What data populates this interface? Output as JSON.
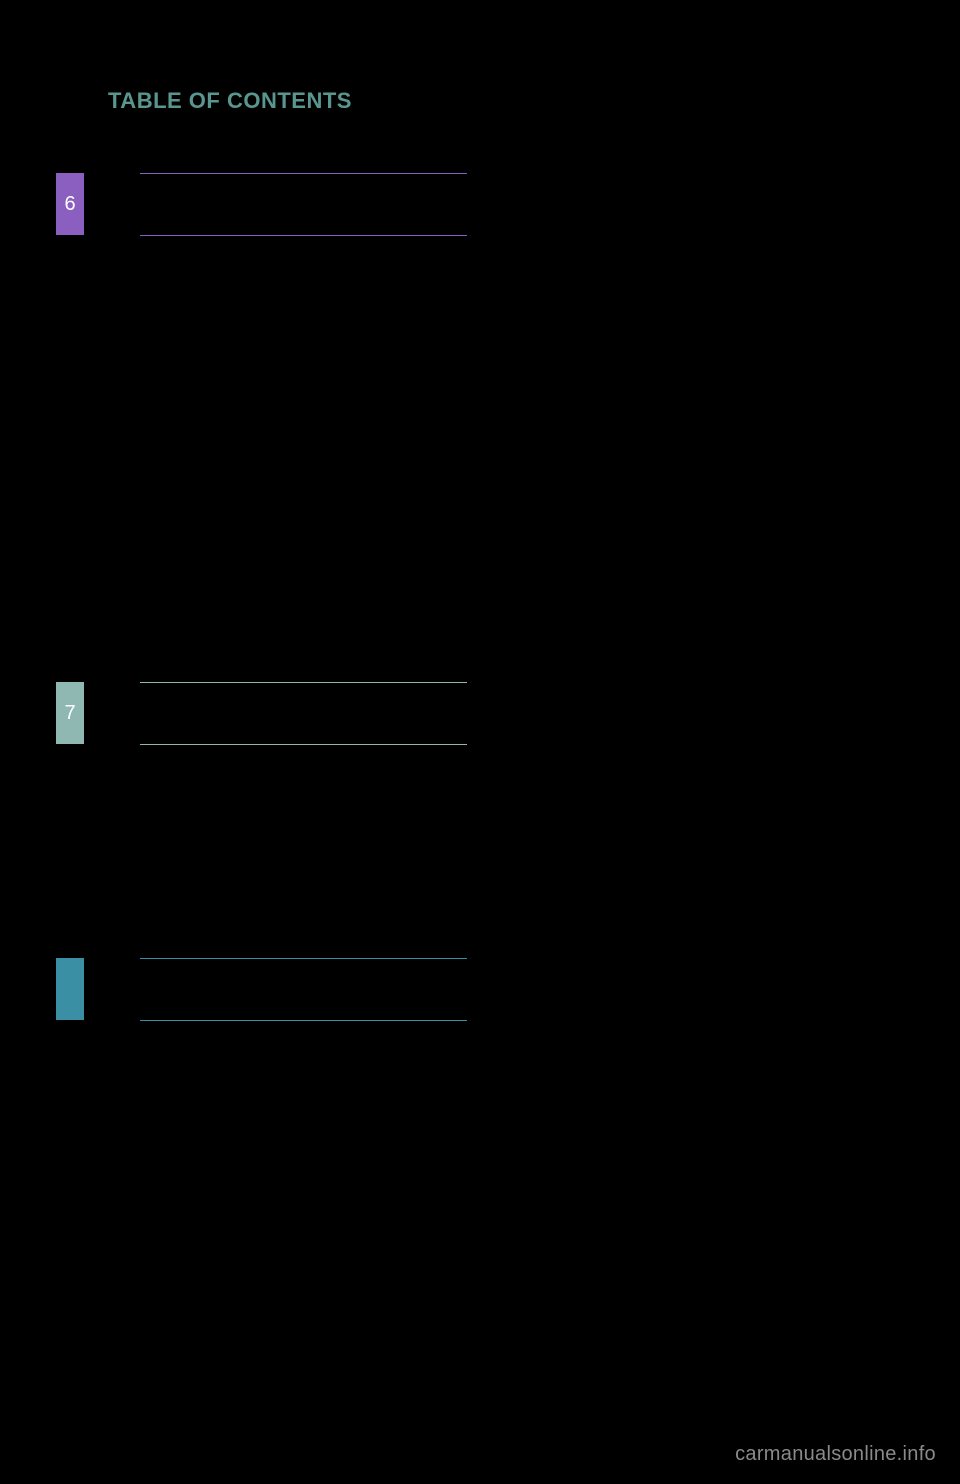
{
  "page": {
    "title": "TABLE OF CONTENTS",
    "background_color": "#000000",
    "title_color": "#5a9690",
    "title_fontsize": 22
  },
  "sections": {
    "s6": {
      "number": "6",
      "accent_color": "#8b5fbf",
      "number_text_color": "#ffffff"
    },
    "s7": {
      "number": "7",
      "accent_color": "#8fb8b2",
      "number_text_color": "#ffffff"
    },
    "s8": {
      "number": "",
      "accent_color": "#3b8fa5",
      "number_text_color": "#ffffff"
    }
  },
  "watermark": {
    "text": "carmanualsonline.info",
    "color": "#8a8a8a",
    "fontsize": 20
  }
}
